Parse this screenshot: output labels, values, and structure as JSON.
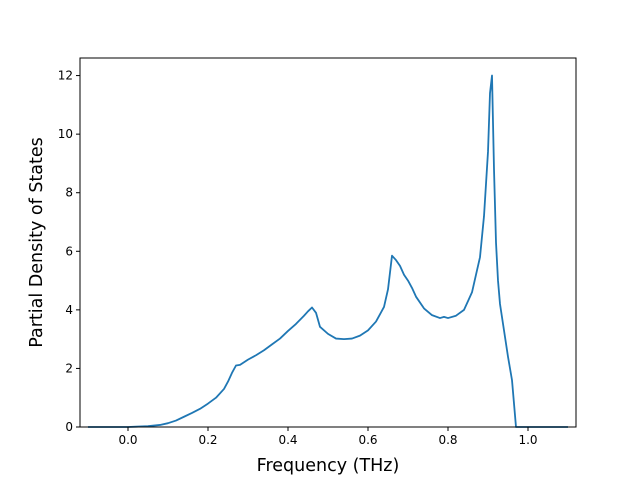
{
  "chart_data": {
    "type": "line",
    "title": "",
    "xlabel": "Frequency (THz)",
    "ylabel": "Partial Density of States",
    "xlim": [
      -0.12,
      1.12
    ],
    "ylim": [
      0,
      12.6
    ],
    "xticks": [
      0.0,
      0.2,
      0.4,
      0.6,
      0.8,
      1.0
    ],
    "xtick_labels": [
      "0.0",
      "0.2",
      "0.4",
      "0.6",
      "0.8",
      "1.0"
    ],
    "yticks": [
      0,
      2,
      4,
      6,
      8,
      10,
      12
    ],
    "ytick_labels": [
      "0",
      "2",
      "4",
      "6",
      "8",
      "10",
      "12"
    ],
    "grid": false,
    "legend": false,
    "series": [
      {
        "color": "#1f77b4",
        "x": [
          -0.1,
          -0.05,
          0.0,
          0.02,
          0.05,
          0.08,
          0.1,
          0.12,
          0.14,
          0.16,
          0.18,
          0.2,
          0.22,
          0.24,
          0.25,
          0.26,
          0.27,
          0.28,
          0.3,
          0.32,
          0.34,
          0.36,
          0.38,
          0.4,
          0.42,
          0.44,
          0.45,
          0.46,
          0.47,
          0.48,
          0.5,
          0.52,
          0.54,
          0.56,
          0.58,
          0.6,
          0.62,
          0.64,
          0.65,
          0.66,
          0.67,
          0.68,
          0.69,
          0.7,
          0.71,
          0.72,
          0.74,
          0.76,
          0.78,
          0.79,
          0.8,
          0.82,
          0.84,
          0.85,
          0.86,
          0.87,
          0.88,
          0.89,
          0.9,
          0.905,
          0.91,
          0.915,
          0.92,
          0.925,
          0.93,
          0.94,
          0.95,
          0.96,
          0.97,
          0.98,
          0.99,
          1.0,
          1.05,
          1.1
        ],
        "y": [
          0,
          0,
          0,
          0.01,
          0.03,
          0.07,
          0.13,
          0.22,
          0.35,
          0.48,
          0.62,
          0.8,
          1.0,
          1.3,
          1.55,
          1.85,
          2.1,
          2.12,
          2.3,
          2.45,
          2.62,
          2.82,
          3.02,
          3.28,
          3.52,
          3.8,
          3.95,
          4.08,
          3.9,
          3.42,
          3.18,
          3.02,
          3.0,
          3.02,
          3.12,
          3.3,
          3.6,
          4.1,
          4.7,
          5.85,
          5.7,
          5.5,
          5.2,
          5.0,
          4.75,
          4.45,
          4.05,
          3.82,
          3.72,
          3.76,
          3.72,
          3.8,
          4.0,
          4.3,
          4.6,
          5.2,
          5.8,
          7.2,
          9.4,
          11.4,
          12.0,
          8.8,
          6.3,
          5.0,
          4.2,
          3.3,
          2.4,
          1.6,
          0,
          0,
          0,
          0,
          0,
          0
        ]
      }
    ]
  }
}
